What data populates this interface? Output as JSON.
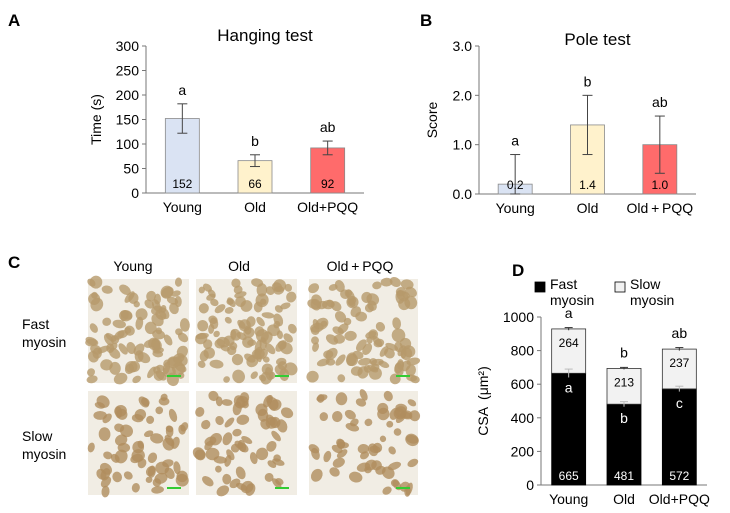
{
  "panels": {
    "a": {
      "letter": "A"
    },
    "b": {
      "letter": "B"
    },
    "c": {
      "letter": "C",
      "columns": [
        "Young",
        "Old",
        "Old + PQQ"
      ],
      "rows": [
        {
          "line1": "Fast",
          "line2": "myosin",
          "stain": "fast"
        },
        {
          "line1": "Slow",
          "line2": "myosin",
          "stain": "slow"
        }
      ],
      "colors": {
        "background": "#f1ede4",
        "fast_cell": "#b79a6c",
        "slow_cell": "#b08d5e",
        "scale_bar": "#33cc33"
      }
    },
    "d": {
      "letter": "D"
    }
  },
  "chart_data": [
    {
      "id": "hanging",
      "type": "bar",
      "title": "Hanging test",
      "xlabel": "",
      "ylabel": "Time (s)",
      "categories": [
        "Young",
        "Old",
        "Old+PQQ"
      ],
      "values": [
        152,
        66,
        92
      ],
      "value_labels": [
        "152",
        "66",
        "92"
      ],
      "error": [
        30,
        12,
        14
      ],
      "significance": [
        "a",
        "b",
        "ab"
      ],
      "colors": [
        "#dae3f3",
        "#fff2cc",
        "#ff6b6b"
      ],
      "ylim": [
        0,
        300
      ],
      "yticks": [
        "0",
        "50",
        "100",
        "150",
        "200",
        "250",
        "300"
      ]
    },
    {
      "id": "pole",
      "type": "bar",
      "title": "Pole test",
      "xlabel": "",
      "ylabel": "Score",
      "categories": [
        "Young",
        "Old",
        "Old + PQQ"
      ],
      "values": [
        0.2,
        1.4,
        1.0
      ],
      "value_labels": [
        "0.2",
        "1.4",
        "1.0"
      ],
      "error": [
        0.6,
        0.6,
        0.58
      ],
      "significance": [
        "a",
        "b",
        "ab"
      ],
      "colors": [
        "#dae3f3",
        "#fff2cc",
        "#ff6b6b"
      ],
      "ylim": [
        0,
        3
      ],
      "yticks": [
        "0.0",
        "1.0",
        "2.0",
        "3.0"
      ]
    },
    {
      "id": "csa",
      "type": "bar",
      "stacked": true,
      "ylabel": "CSA (μm²)",
      "categories": [
        "Young",
        "Old",
        "Old+PQQ"
      ],
      "series": [
        {
          "name": "Fast myosin",
          "legend_line1": "Fast",
          "legend_line2": "myosin",
          "values": [
            665,
            481,
            572
          ],
          "labels": [
            "665",
            "481",
            "572"
          ],
          "significance": [
            "a",
            "b",
            "c"
          ],
          "error": [
            25,
            15,
            16
          ],
          "color": "#000000"
        },
        {
          "name": "Slow myosin",
          "legend_line1": "Slow",
          "legend_line2": "myosin",
          "values": [
            264,
            213,
            237
          ],
          "labels": [
            "264",
            "213",
            "237"
          ],
          "error": [
            8,
            6,
            9
          ],
          "color": "#f2f2f2"
        }
      ],
      "significance_total": [
        "a",
        "b",
        "ab"
      ],
      "legend": "top",
      "ylim": [
        0,
        1000
      ],
      "yticks": [
        "0",
        "200",
        "400",
        "600",
        "800",
        "1000"
      ]
    }
  ]
}
